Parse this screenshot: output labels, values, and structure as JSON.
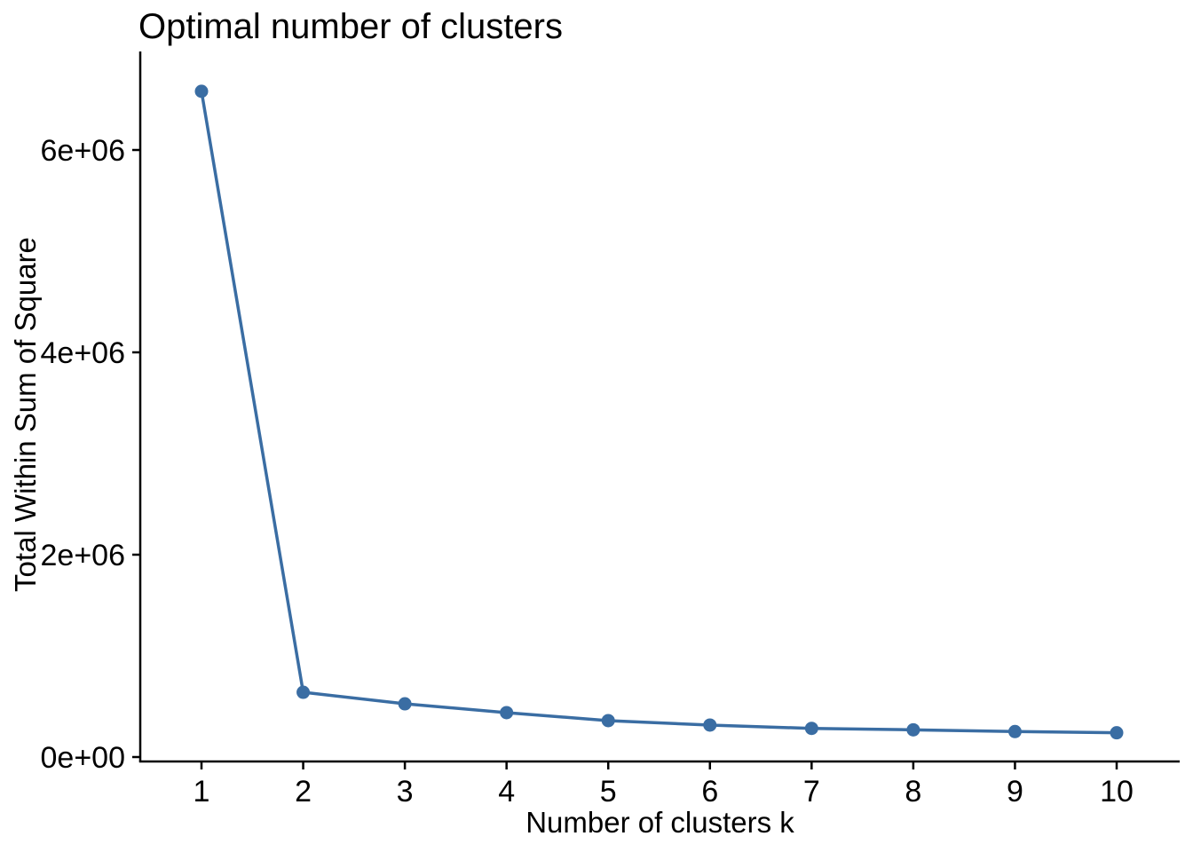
{
  "chart_data": {
    "type": "line",
    "title": "Optimal number of clusters",
    "xlabel": "Number of clusters k",
    "ylabel": "Total Within Sum of Square",
    "series_name": "Total Within Sum of Square",
    "x": [
      1,
      2,
      3,
      4,
      5,
      6,
      7,
      8,
      9,
      10
    ],
    "x_tick_labels": [
      "1",
      "2",
      "3",
      "4",
      "5",
      "6",
      "7",
      "8",
      "9",
      "10"
    ],
    "y": [
      6580000,
      640000,
      526000,
      439000,
      360000,
      316000,
      283000,
      269000,
      252000,
      240000
    ],
    "y_ticks": [
      0,
      2000000,
      4000000,
      6000000
    ],
    "y_tick_labels": [
      "0e+00",
      "2e+06",
      "4e+06",
      "6e+06"
    ],
    "ylim": [
      0,
      6900000
    ],
    "xlim": [
      0.4,
      10.62
    ],
    "grid": false,
    "legend": "none",
    "colors": {
      "line": "#3A6DA3",
      "point": "#3A6DA3",
      "axis": "#000000",
      "text": "#000000",
      "background": "#FFFFFF"
    }
  }
}
